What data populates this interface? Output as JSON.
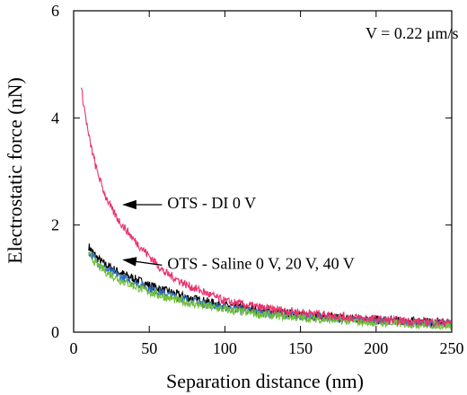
{
  "chart_data": {
    "type": "line",
    "xlabel": "Separation distance (nm)",
    "ylabel": "Electrostatic force (nN)",
    "xlim": [
      0,
      250
    ],
    "ylim": [
      0,
      6
    ],
    "x_ticks": [
      0,
      50,
      100,
      150,
      200,
      250
    ],
    "y_ticks": [
      0,
      2,
      4,
      6
    ],
    "grid": false,
    "series": [
      {
        "name": "OTS - DI 0 V",
        "color": "#e8336e",
        "x": [
          5,
          10,
          15,
          20,
          25,
          30,
          40,
          50,
          60,
          75,
          100,
          125,
          150,
          175,
          200,
          225,
          250
        ],
        "y": [
          4.55,
          3.65,
          3.05,
          2.62,
          2.3,
          2.08,
          1.72,
          1.42,
          1.12,
          0.88,
          0.58,
          0.45,
          0.37,
          0.3,
          0.24,
          0.2,
          0.18
        ]
      },
      {
        "name": "",
        "color": "#000000",
        "x": [
          10,
          15,
          20,
          30,
          40,
          50,
          60,
          75,
          100,
          125,
          150,
          175,
          200,
          225,
          250
        ],
        "y": [
          1.6,
          1.4,
          1.28,
          1.12,
          1.0,
          0.88,
          0.78,
          0.65,
          0.5,
          0.4,
          0.32,
          0.27,
          0.23,
          0.2,
          0.17
        ]
      },
      {
        "name": "",
        "color": "#2a6bbf",
        "x": [
          10,
          15,
          20,
          30,
          40,
          50,
          60,
          75,
          100,
          125,
          150,
          175,
          200,
          225,
          250
        ],
        "y": [
          1.5,
          1.33,
          1.2,
          1.05,
          0.93,
          0.82,
          0.72,
          0.6,
          0.46,
          0.36,
          0.3,
          0.25,
          0.21,
          0.18,
          0.16
        ]
      },
      {
        "name": "",
        "color": "#72c03a",
        "x": [
          10,
          15,
          20,
          30,
          40,
          50,
          60,
          75,
          100,
          125,
          150,
          175,
          200,
          225,
          250
        ],
        "y": [
          1.45,
          1.28,
          1.15,
          0.98,
          0.86,
          0.75,
          0.66,
          0.55,
          0.42,
          0.33,
          0.27,
          0.22,
          0.18,
          0.15,
          0.12
        ]
      }
    ],
    "annotations": [
      {
        "text": "V = 0.22 μm/s",
        "x": 193,
        "y": 5.55
      },
      {
        "text": "OTS - DI 0 V",
        "x": 62,
        "y": 2.38,
        "arrow_to": [
          33,
          2.38
        ]
      },
      {
        "text": "OTS - Saline 0 V, 20 V, 40 V",
        "x": 62,
        "y": 1.25,
        "arrow_to": [
          33,
          1.35
        ]
      }
    ]
  }
}
